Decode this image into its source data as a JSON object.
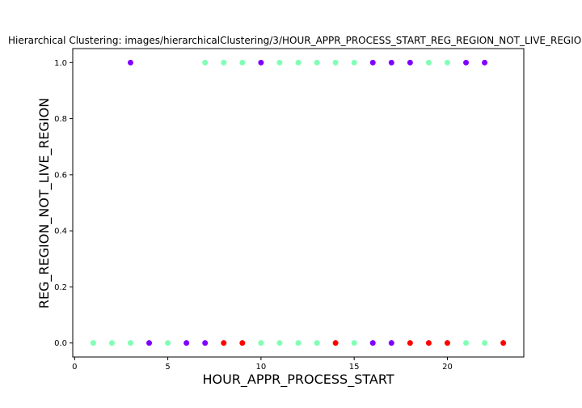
{
  "chart_data": {
    "type": "scatter",
    "title": "Hierarchical Clustering: images/hierarchicalClustering/3/HOUR_APPR_PROCESS_START_REG_REGION_NOT_LIVE_REGION.png",
    "xlabel": "HOUR_APPR_PROCESS_START",
    "ylabel": "REG_REGION_NOT_LIVE_REGION",
    "xlim": [
      -0.1,
      24.1
    ],
    "ylim": [
      -0.05,
      1.05
    ],
    "xticks": [
      0,
      5,
      10,
      15,
      20
    ],
    "yticks": [
      0.0,
      0.2,
      0.4,
      0.6,
      0.8,
      1.0
    ],
    "xtick_labels": [
      "0",
      "5",
      "10",
      "15",
      "20"
    ],
    "ytick_labels": [
      "0.0",
      "0.2",
      "0.4",
      "0.6",
      "0.8",
      "1.0"
    ],
    "grid": false,
    "legend": "none",
    "cluster_colors": {
      "0": "#8000ff",
      "1": "#80ffb4",
      "2": "#ff0000"
    },
    "points": [
      {
        "x": 3,
        "y": 1,
        "cluster": 0
      },
      {
        "x": 7,
        "y": 1,
        "cluster": 1
      },
      {
        "x": 8,
        "y": 1,
        "cluster": 1
      },
      {
        "x": 9,
        "y": 1,
        "cluster": 1
      },
      {
        "x": 10,
        "y": 1,
        "cluster": 0
      },
      {
        "x": 11,
        "y": 1,
        "cluster": 1
      },
      {
        "x": 12,
        "y": 1,
        "cluster": 1
      },
      {
        "x": 13,
        "y": 1,
        "cluster": 1
      },
      {
        "x": 14,
        "y": 1,
        "cluster": 1
      },
      {
        "x": 15,
        "y": 1,
        "cluster": 1
      },
      {
        "x": 16,
        "y": 1,
        "cluster": 0
      },
      {
        "x": 17,
        "y": 1,
        "cluster": 0
      },
      {
        "x": 18,
        "y": 1,
        "cluster": 0
      },
      {
        "x": 19,
        "y": 1,
        "cluster": 1
      },
      {
        "x": 20,
        "y": 1,
        "cluster": 1
      },
      {
        "x": 21,
        "y": 1,
        "cluster": 0
      },
      {
        "x": 22,
        "y": 1,
        "cluster": 0
      },
      {
        "x": 1,
        "y": 0,
        "cluster": 1
      },
      {
        "x": 2,
        "y": 0,
        "cluster": 1
      },
      {
        "x": 3,
        "y": 0,
        "cluster": 1
      },
      {
        "x": 4,
        "y": 0,
        "cluster": 0
      },
      {
        "x": 5,
        "y": 0,
        "cluster": 1
      },
      {
        "x": 6,
        "y": 0,
        "cluster": 0
      },
      {
        "x": 7,
        "y": 0,
        "cluster": 0
      },
      {
        "x": 8,
        "y": 0,
        "cluster": 2
      },
      {
        "x": 9,
        "y": 0,
        "cluster": 2
      },
      {
        "x": 10,
        "y": 0,
        "cluster": 1
      },
      {
        "x": 11,
        "y": 0,
        "cluster": 1
      },
      {
        "x": 12,
        "y": 0,
        "cluster": 1
      },
      {
        "x": 13,
        "y": 0,
        "cluster": 1
      },
      {
        "x": 14,
        "y": 0,
        "cluster": 2
      },
      {
        "x": 15,
        "y": 0,
        "cluster": 1
      },
      {
        "x": 16,
        "y": 0,
        "cluster": 0
      },
      {
        "x": 17,
        "y": 0,
        "cluster": 0
      },
      {
        "x": 18,
        "y": 0,
        "cluster": 2
      },
      {
        "x": 19,
        "y": 0,
        "cluster": 2
      },
      {
        "x": 20,
        "y": 0,
        "cluster": 2
      },
      {
        "x": 21,
        "y": 0,
        "cluster": 1
      },
      {
        "x": 22,
        "y": 0,
        "cluster": 1
      },
      {
        "x": 23,
        "y": 0,
        "cluster": 2
      }
    ]
  }
}
